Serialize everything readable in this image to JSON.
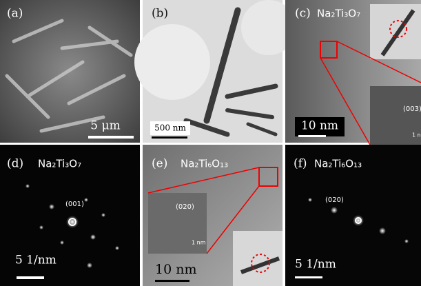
{
  "panels": [
    {
      "label": "(a)",
      "scale_bar": "5 μm"
    },
    {
      "label": "(b)",
      "scale_bar": "500 nm"
    },
    {
      "label": "(c)",
      "compound": "Na₂Ti₃O₇",
      "inset_plane": "(003)",
      "inset_scale": "1 n",
      "scale_bar": "10 nm"
    },
    {
      "label": "(d)",
      "compound": "Na₂Ti₃O₇",
      "spot_label": "(001)",
      "scale_bar": "5 1/nm"
    },
    {
      "label": "(e)",
      "compound": "Na₂Ti₆O₁₃",
      "inset_plane": "(020)",
      "inset_scale": "1 nm",
      "scale_bar": "10 nm"
    },
    {
      "label": "(f)",
      "compound": "Na₂Ti₆O₁₃",
      "spot_label": "(020)",
      "scale_bar": "5 1/nm"
    }
  ]
}
